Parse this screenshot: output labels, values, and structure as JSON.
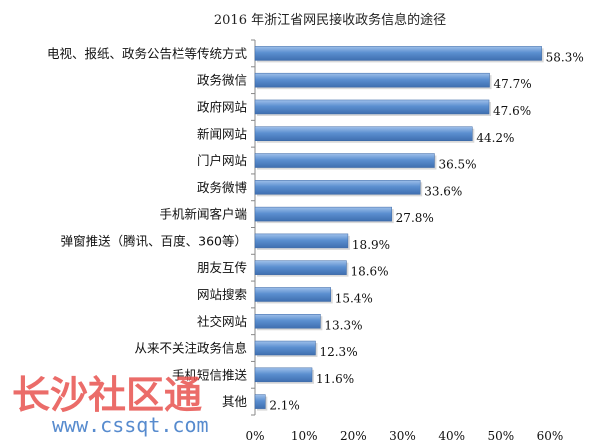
{
  "chart_data": {
    "type": "bar",
    "orientation": "horizontal",
    "title": "2016 年浙江省网民接收政务信息的途径",
    "categories": [
      "电视、报纸、政务公告栏等传统方式",
      "政务微信",
      "政府网站",
      "新闻网站",
      "门户网站",
      "政务微博",
      "手机新闻客户端",
      "弹窗推送（腾讯、百度、360等）",
      "朋友互传",
      "网站搜索",
      "社交网站",
      "从来不关注政务信息",
      "手机短信推送",
      "其他"
    ],
    "values": [
      58.3,
      47.7,
      47.6,
      44.2,
      36.5,
      33.6,
      27.8,
      18.9,
      18.6,
      15.4,
      13.3,
      12.3,
      11.6,
      2.1
    ],
    "value_labels": [
      "58.3%",
      "47.7%",
      "47.6%",
      "44.2%",
      "36.5%",
      "33.6%",
      "27.8%",
      "18.9%",
      "18.6%",
      "15.4%",
      "13.3%",
      "12.3%",
      "11.6%",
      "2.1%"
    ],
    "x_ticks": [
      "0%",
      "10%",
      "20%",
      "30%",
      "40%",
      "50%",
      "60%"
    ],
    "xlim": [
      0,
      60
    ],
    "grid": false,
    "legend": "none",
    "bar_color": "#4f81bd",
    "bar_color_light": "#8eb4e3"
  },
  "watermark": {
    "text_cn": "长沙社区通",
    "url": "www.cssqt.com"
  }
}
